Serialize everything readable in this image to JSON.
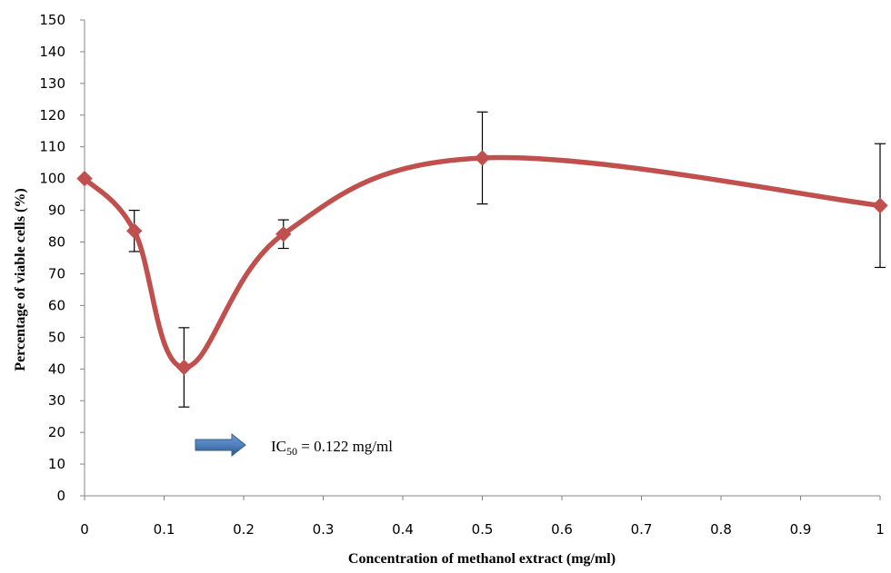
{
  "chart_data": {
    "type": "line",
    "xlabel": "Concentration of methanol extract (mg/ml)",
    "ylabel": "Percentage of viable cells (%)",
    "xlim": [
      0,
      1
    ],
    "ylim": [
      0,
      150
    ],
    "x_ticks": [
      "0",
      "0.1",
      "0.2",
      "0.3",
      "0.4",
      "0.5",
      "0.6",
      "0.7",
      "0.8",
      "0.9",
      "1"
    ],
    "y_ticks": [
      "0",
      "10",
      "20",
      "30",
      "40",
      "50",
      "60",
      "70",
      "80",
      "90",
      "100",
      "110",
      "120",
      "130",
      "140",
      "150"
    ],
    "series": [
      {
        "color": "#c0504d",
        "marker": "diamond",
        "smooth": true,
        "points": [
          {
            "x": 0,
            "y": 100,
            "err_low": 100,
            "err_high": 100
          },
          {
            "x": 0.0625,
            "y": 83.5,
            "err_low": 77,
            "err_high": 90
          },
          {
            "x": 0.125,
            "y": 40.5,
            "err_low": 28,
            "err_high": 53
          },
          {
            "x": 0.25,
            "y": 82.5,
            "err_low": 78,
            "err_high": 87
          },
          {
            "x": 0.5,
            "y": 106.5,
            "err_low": 92,
            "err_high": 121
          },
          {
            "x": 1,
            "y": 91.5,
            "err_low": 72,
            "err_high": 111
          }
        ]
      }
    ],
    "grid": false,
    "annotation": {
      "prefix": "IC",
      "subscript": "50",
      "suffix": " = 0.122 mg/ml",
      "arrow_color": "#4f81bd"
    }
  }
}
